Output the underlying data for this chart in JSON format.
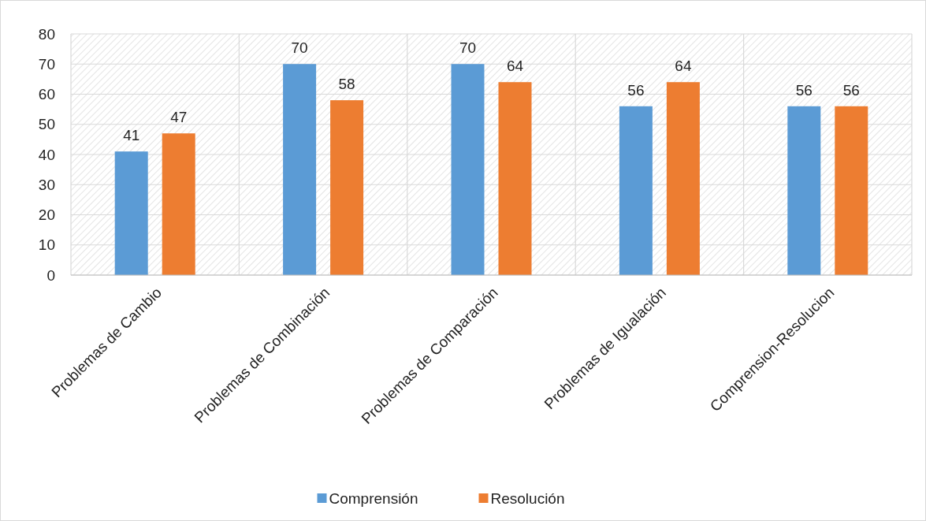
{
  "chart_data": {
    "type": "bar",
    "categories": [
      "Problemas de Cambio",
      "Problemas de Combinación",
      "Problemas de Comparación",
      "Problemas de Igualación",
      "Comprension-Resolucion"
    ],
    "series": [
      {
        "name": "Comprensión",
        "color": "#5b9bd5",
        "values": [
          41,
          70,
          70,
          56,
          56
        ]
      },
      {
        "name": "Resolución",
        "color": "#ed7d31",
        "values": [
          47,
          58,
          64,
          64,
          56
        ]
      }
    ],
    "ylim": [
      0,
      80
    ],
    "yticks": [
      0,
      10,
      20,
      30,
      40,
      50,
      60,
      70,
      80
    ],
    "grid": true,
    "legend": "bottom",
    "data_labels": true
  }
}
